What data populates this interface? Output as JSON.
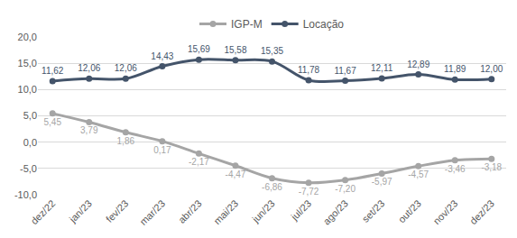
{
  "chart_data": {
    "type": "line",
    "categories": [
      "dez/22",
      "jan/23",
      "fev/23",
      "mar/23",
      "abr/23",
      "mai/23",
      "jun/23",
      "jul/23",
      "ago/23",
      "set/23",
      "out/23",
      "nov/23",
      "dez/23"
    ],
    "series": [
      {
        "name": "IGP-M",
        "color": "#a5a5a5",
        "marker": "circle",
        "values": [
          5.45,
          3.79,
          1.86,
          0.17,
          -2.17,
          -4.47,
          -6.86,
          -7.72,
          -7.2,
          -5.97,
          -4.57,
          -3.46,
          -3.18
        ],
        "value_labels": [
          "5,45",
          "3,79",
          "1,86",
          "0,17",
          "-2,17",
          "-4,47",
          "-6,86",
          "-7,72",
          "-7,20",
          "-5,97",
          "-4,57",
          "-3,46",
          "-3,18"
        ]
      },
      {
        "name": "Locação",
        "color": "#44546a",
        "marker": "circle",
        "values": [
          11.62,
          12.06,
          12.06,
          14.43,
          15.69,
          15.58,
          15.35,
          11.78,
          11.67,
          12.11,
          12.89,
          11.89,
          12.0
        ],
        "value_labels": [
          "11,62",
          "12,06",
          "12,06",
          "14,43",
          "15,69",
          "15,58",
          "15,35",
          "11,78",
          "11,67",
          "12,11",
          "12,89",
          "11,89",
          "12,00"
        ]
      }
    ],
    "ylim": [
      -10,
      20
    ],
    "yticks": [
      {
        "value": -10,
        "label": "-10,0"
      },
      {
        "value": -5,
        "label": "-5,0"
      },
      {
        "value": 0,
        "label": "0,0"
      },
      {
        "value": 5,
        "label": "5,0"
      },
      {
        "value": 10,
        "label": "10,0"
      },
      {
        "value": 15,
        "label": "15,0"
      },
      {
        "value": 20,
        "label": "20,0"
      }
    ],
    "grid": true,
    "legend": "top",
    "data_labels": true
  }
}
